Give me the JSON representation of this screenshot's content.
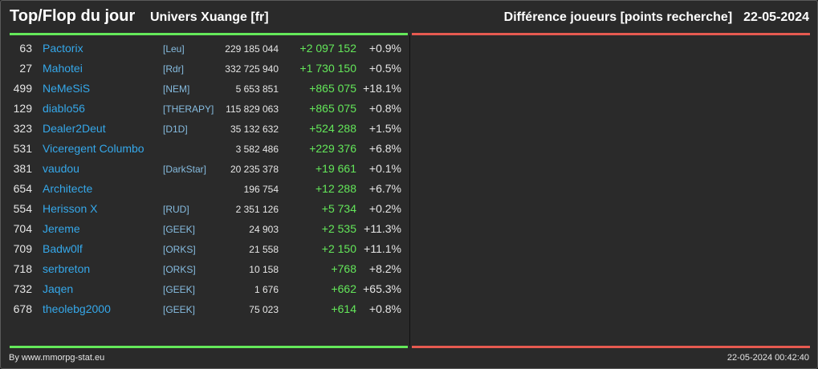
{
  "header": {
    "title": "Top/Flop du jour",
    "universe": "Univers Xuange [fr]",
    "metric": "Différence joueurs [points recherche]",
    "date": "22-05-2024"
  },
  "colors": {
    "top_bar": "#64e85a",
    "flop_bar": "#e65a50",
    "player_link": "#35a8ea",
    "alliance_tag": "#86bce0",
    "positive_diff": "#64e85a"
  },
  "top_rows": [
    {
      "rank": "63",
      "name": "Pactorix",
      "alliance": "[Leu]",
      "points": "229 185 044",
      "diff": "+2 097 152",
      "pct": "+0.9%"
    },
    {
      "rank": "27",
      "name": "Mahotei",
      "alliance": "[Rdr]",
      "points": "332 725 940",
      "diff": "+1 730 150",
      "pct": "+0.5%"
    },
    {
      "rank": "499",
      "name": "NeMeSiS",
      "alliance": "[NEM]",
      "points": "5 653 851",
      "diff": "+865 075",
      "pct": "+18.1%"
    },
    {
      "rank": "129",
      "name": "diablo56",
      "alliance": "[THERAPY]",
      "points": "115 829 063",
      "diff": "+865 075",
      "pct": "+0.8%"
    },
    {
      "rank": "323",
      "name": "Dealer2Deut",
      "alliance": "[D1D]",
      "points": "35 132 632",
      "diff": "+524 288",
      "pct": "+1.5%"
    },
    {
      "rank": "531",
      "name": "Viceregent Columbo",
      "alliance": "",
      "points": "3 582 486",
      "diff": "+229 376",
      "pct": "+6.8%"
    },
    {
      "rank": "381",
      "name": "vaudou",
      "alliance": "[DarkStar]",
      "points": "20 235 378",
      "diff": "+19 661",
      "pct": "+0.1%"
    },
    {
      "rank": "654",
      "name": "Architecte",
      "alliance": "",
      "points": "196 754",
      "diff": "+12 288",
      "pct": "+6.7%"
    },
    {
      "rank": "554",
      "name": "Herisson X",
      "alliance": "[RUD]",
      "points": "2 351 126",
      "diff": "+5 734",
      "pct": "+0.2%"
    },
    {
      "rank": "704",
      "name": "Jereme",
      "alliance": "[GEEK]",
      "points": "24 903",
      "diff": "+2 535",
      "pct": "+11.3%"
    },
    {
      "rank": "709",
      "name": "Badw0lf",
      "alliance": "[ORKS]",
      "points": "21 558",
      "diff": "+2 150",
      "pct": "+11.1%"
    },
    {
      "rank": "718",
      "name": "serbreton",
      "alliance": "[ORKS]",
      "points": "10 158",
      "diff": "+768",
      "pct": "+8.2%"
    },
    {
      "rank": "732",
      "name": "Jaqen",
      "alliance": "[GEEK]",
      "points": "1 676",
      "diff": "+662",
      "pct": "+65.3%"
    },
    {
      "rank": "678",
      "name": "theolebg2000",
      "alliance": "[GEEK]",
      "points": "75 023",
      "diff": "+614",
      "pct": "+0.8%"
    }
  ],
  "footer": {
    "credit": "By www.mmorpg-stat.eu",
    "generated": "22-05-2024 00:42:40"
  }
}
